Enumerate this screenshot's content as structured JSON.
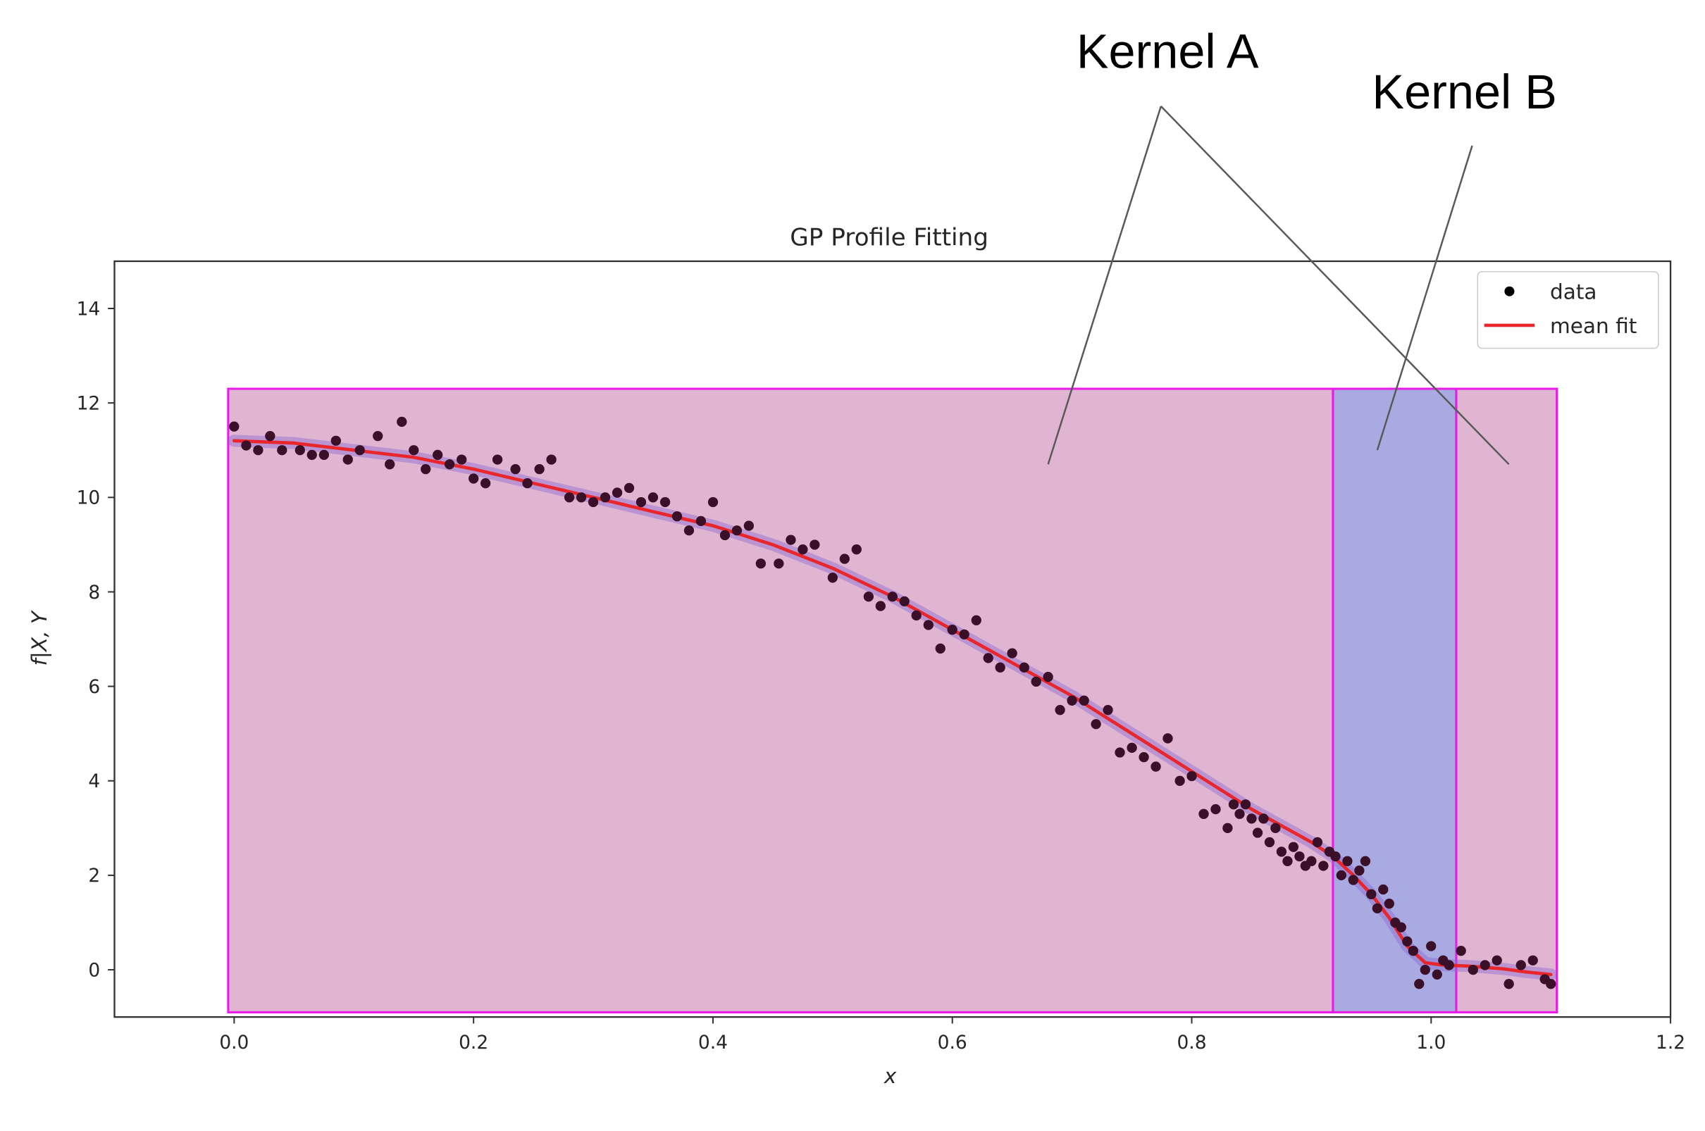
{
  "chart_data": {
    "type": "scatter",
    "title": "GP Profile Fitting",
    "xlabel": "x",
    "ylabel": "f|X, Y",
    "xlim": [
      -0.1,
      1.2
    ],
    "ylim": [
      -1.0,
      15.0
    ],
    "xticks": [
      0.0,
      0.2,
      0.4,
      0.6,
      0.8,
      1.0,
      1.2
    ],
    "xtick_labels": [
      "0.0",
      "0.2",
      "0.4",
      "0.6",
      "0.8",
      "1.0",
      "1.2"
    ],
    "yticks": [
      0,
      2,
      4,
      6,
      8,
      10,
      12,
      14
    ],
    "ytick_labels": [
      "0",
      "2",
      "4",
      "6",
      "8",
      "10",
      "12",
      "14"
    ],
    "grid": false,
    "legend": {
      "position": "top-right",
      "entries": [
        {
          "label": "data",
          "marker": "dot",
          "color": "#000000"
        },
        {
          "label": "mean fit",
          "marker": "line",
          "color": "#e8262b"
        }
      ]
    },
    "regions": [
      {
        "x0": -0.005,
        "x1": 0.918,
        "y0": -0.9,
        "y1": 12.3,
        "fill": "#e0b5d2",
        "stroke": "#e61ee6"
      },
      {
        "x0": 0.918,
        "x1": 1.021,
        "y0": -0.9,
        "y1": 12.3,
        "fill": "#aaaae2",
        "stroke": "#e61ee6"
      },
      {
        "x0": 1.021,
        "x1": 1.105,
        "y0": -0.9,
        "y1": 12.3,
        "fill": "#e0b5d2",
        "stroke": "#e61ee6"
      }
    ],
    "series": [
      {
        "name": "data",
        "kind": "scatter",
        "color": "#3a0f28",
        "points": [
          [
            0.0,
            11.5
          ],
          [
            0.01,
            11.1
          ],
          [
            0.02,
            11.0
          ],
          [
            0.03,
            11.3
          ],
          [
            0.04,
            11.0
          ],
          [
            0.055,
            11.0
          ],
          [
            0.065,
            10.9
          ],
          [
            0.075,
            10.9
          ],
          [
            0.085,
            11.2
          ],
          [
            0.095,
            10.8
          ],
          [
            0.105,
            11.0
          ],
          [
            0.12,
            11.3
          ],
          [
            0.13,
            10.7
          ],
          [
            0.14,
            11.6
          ],
          [
            0.15,
            11.0
          ],
          [
            0.16,
            10.6
          ],
          [
            0.17,
            10.9
          ],
          [
            0.18,
            10.7
          ],
          [
            0.19,
            10.8
          ],
          [
            0.2,
            10.4
          ],
          [
            0.21,
            10.3
          ],
          [
            0.22,
            10.8
          ],
          [
            0.235,
            10.6
          ],
          [
            0.245,
            10.3
          ],
          [
            0.255,
            10.6
          ],
          [
            0.265,
            10.8
          ],
          [
            0.28,
            10.0
          ],
          [
            0.29,
            10.0
          ],
          [
            0.3,
            9.9
          ],
          [
            0.31,
            10.0
          ],
          [
            0.32,
            10.1
          ],
          [
            0.33,
            10.2
          ],
          [
            0.34,
            9.9
          ],
          [
            0.35,
            10.0
          ],
          [
            0.36,
            9.9
          ],
          [
            0.37,
            9.6
          ],
          [
            0.38,
            9.3
          ],
          [
            0.39,
            9.5
          ],
          [
            0.4,
            9.9
          ],
          [
            0.41,
            9.2
          ],
          [
            0.42,
            9.3
          ],
          [
            0.43,
            9.4
          ],
          [
            0.44,
            8.6
          ],
          [
            0.455,
            8.6
          ],
          [
            0.465,
            9.1
          ],
          [
            0.475,
            8.9
          ],
          [
            0.485,
            9.0
          ],
          [
            0.5,
            8.3
          ],
          [
            0.51,
            8.7
          ],
          [
            0.52,
            8.9
          ],
          [
            0.53,
            7.9
          ],
          [
            0.54,
            7.7
          ],
          [
            0.55,
            7.9
          ],
          [
            0.56,
            7.8
          ],
          [
            0.57,
            7.5
          ],
          [
            0.58,
            7.3
          ],
          [
            0.59,
            6.8
          ],
          [
            0.6,
            7.2
          ],
          [
            0.61,
            7.1
          ],
          [
            0.62,
            7.4
          ],
          [
            0.63,
            6.6
          ],
          [
            0.64,
            6.4
          ],
          [
            0.65,
            6.7
          ],
          [
            0.66,
            6.4
          ],
          [
            0.67,
            6.1
          ],
          [
            0.68,
            6.2
          ],
          [
            0.69,
            5.5
          ],
          [
            0.7,
            5.7
          ],
          [
            0.71,
            5.7
          ],
          [
            0.72,
            5.2
          ],
          [
            0.73,
            5.5
          ],
          [
            0.74,
            4.6
          ],
          [
            0.75,
            4.7
          ],
          [
            0.76,
            4.5
          ],
          [
            0.77,
            4.3
          ],
          [
            0.78,
            4.9
          ],
          [
            0.79,
            4.0
          ],
          [
            0.8,
            4.1
          ],
          [
            0.81,
            3.3
          ],
          [
            0.82,
            3.4
          ],
          [
            0.83,
            3.0
          ],
          [
            0.835,
            3.5
          ],
          [
            0.84,
            3.3
          ],
          [
            0.845,
            3.5
          ],
          [
            0.85,
            3.2
          ],
          [
            0.855,
            2.9
          ],
          [
            0.86,
            3.2
          ],
          [
            0.865,
            2.7
          ],
          [
            0.87,
            3.0
          ],
          [
            0.875,
            2.5
          ],
          [
            0.88,
            2.3
          ],
          [
            0.885,
            2.6
          ],
          [
            0.89,
            2.4
          ],
          [
            0.895,
            2.2
          ],
          [
            0.9,
            2.3
          ],
          [
            0.905,
            2.7
          ],
          [
            0.91,
            2.2
          ],
          [
            0.915,
            2.5
          ],
          [
            0.92,
            2.4
          ],
          [
            0.925,
            2.0
          ],
          [
            0.93,
            2.3
          ],
          [
            0.935,
            1.9
          ],
          [
            0.94,
            2.1
          ],
          [
            0.945,
            2.3
          ],
          [
            0.95,
            1.6
          ],
          [
            0.955,
            1.3
          ],
          [
            0.96,
            1.7
          ],
          [
            0.965,
            1.4
          ],
          [
            0.97,
            1.0
          ],
          [
            0.975,
            0.9
          ],
          [
            0.98,
            0.6
          ],
          [
            0.985,
            0.4
          ],
          [
            0.99,
            -0.3
          ],
          [
            0.995,
            0.0
          ],
          [
            1.0,
            0.5
          ],
          [
            1.005,
            -0.1
          ],
          [
            1.01,
            0.2
          ],
          [
            1.015,
            0.1
          ],
          [
            1.025,
            0.4
          ],
          [
            1.035,
            0.0
          ],
          [
            1.045,
            0.1
          ],
          [
            1.055,
            0.2
          ],
          [
            1.065,
            -0.3
          ],
          [
            1.075,
            0.1
          ],
          [
            1.085,
            0.2
          ],
          [
            1.095,
            -0.2
          ],
          [
            1.1,
            -0.3
          ]
        ]
      },
      {
        "name": "mean fit",
        "kind": "line",
        "color": "#e8262b",
        "points": [
          [
            0.0,
            11.2
          ],
          [
            0.05,
            11.15
          ],
          [
            0.1,
            11.0
          ],
          [
            0.15,
            10.85
          ],
          [
            0.2,
            10.6
          ],
          [
            0.25,
            10.3
          ],
          [
            0.3,
            10.0
          ],
          [
            0.35,
            9.7
          ],
          [
            0.4,
            9.4
          ],
          [
            0.45,
            9.0
          ],
          [
            0.5,
            8.5
          ],
          [
            0.55,
            7.9
          ],
          [
            0.6,
            7.2
          ],
          [
            0.65,
            6.5
          ],
          [
            0.7,
            5.8
          ],
          [
            0.75,
            5.0
          ],
          [
            0.8,
            4.2
          ],
          [
            0.85,
            3.4
          ],
          [
            0.9,
            2.7
          ],
          [
            0.918,
            2.4
          ],
          [
            0.935,
            2.0
          ],
          [
            0.95,
            1.6
          ],
          [
            0.965,
            1.1
          ],
          [
            0.98,
            0.5
          ],
          [
            0.995,
            0.15
          ],
          [
            1.01,
            0.1
          ],
          [
            1.03,
            0.08
          ],
          [
            1.06,
            0.02
          ],
          [
            1.08,
            -0.05
          ],
          [
            1.1,
            -0.1
          ]
        ]
      }
    ],
    "annotations": [
      {
        "label": "Kernel A",
        "targets": [
          [
            0.68,
            10.7
          ],
          [
            1.065,
            10.7
          ]
        ]
      },
      {
        "label": "Kernel B",
        "targets": [
          [
            0.955,
            11.0
          ]
        ]
      }
    ]
  },
  "colors": {
    "axis": "#333333",
    "tick_text": "#262626",
    "region_outline": "#e61ee6",
    "fit_band": "#8c6bd0",
    "leader_line": "#595959"
  }
}
